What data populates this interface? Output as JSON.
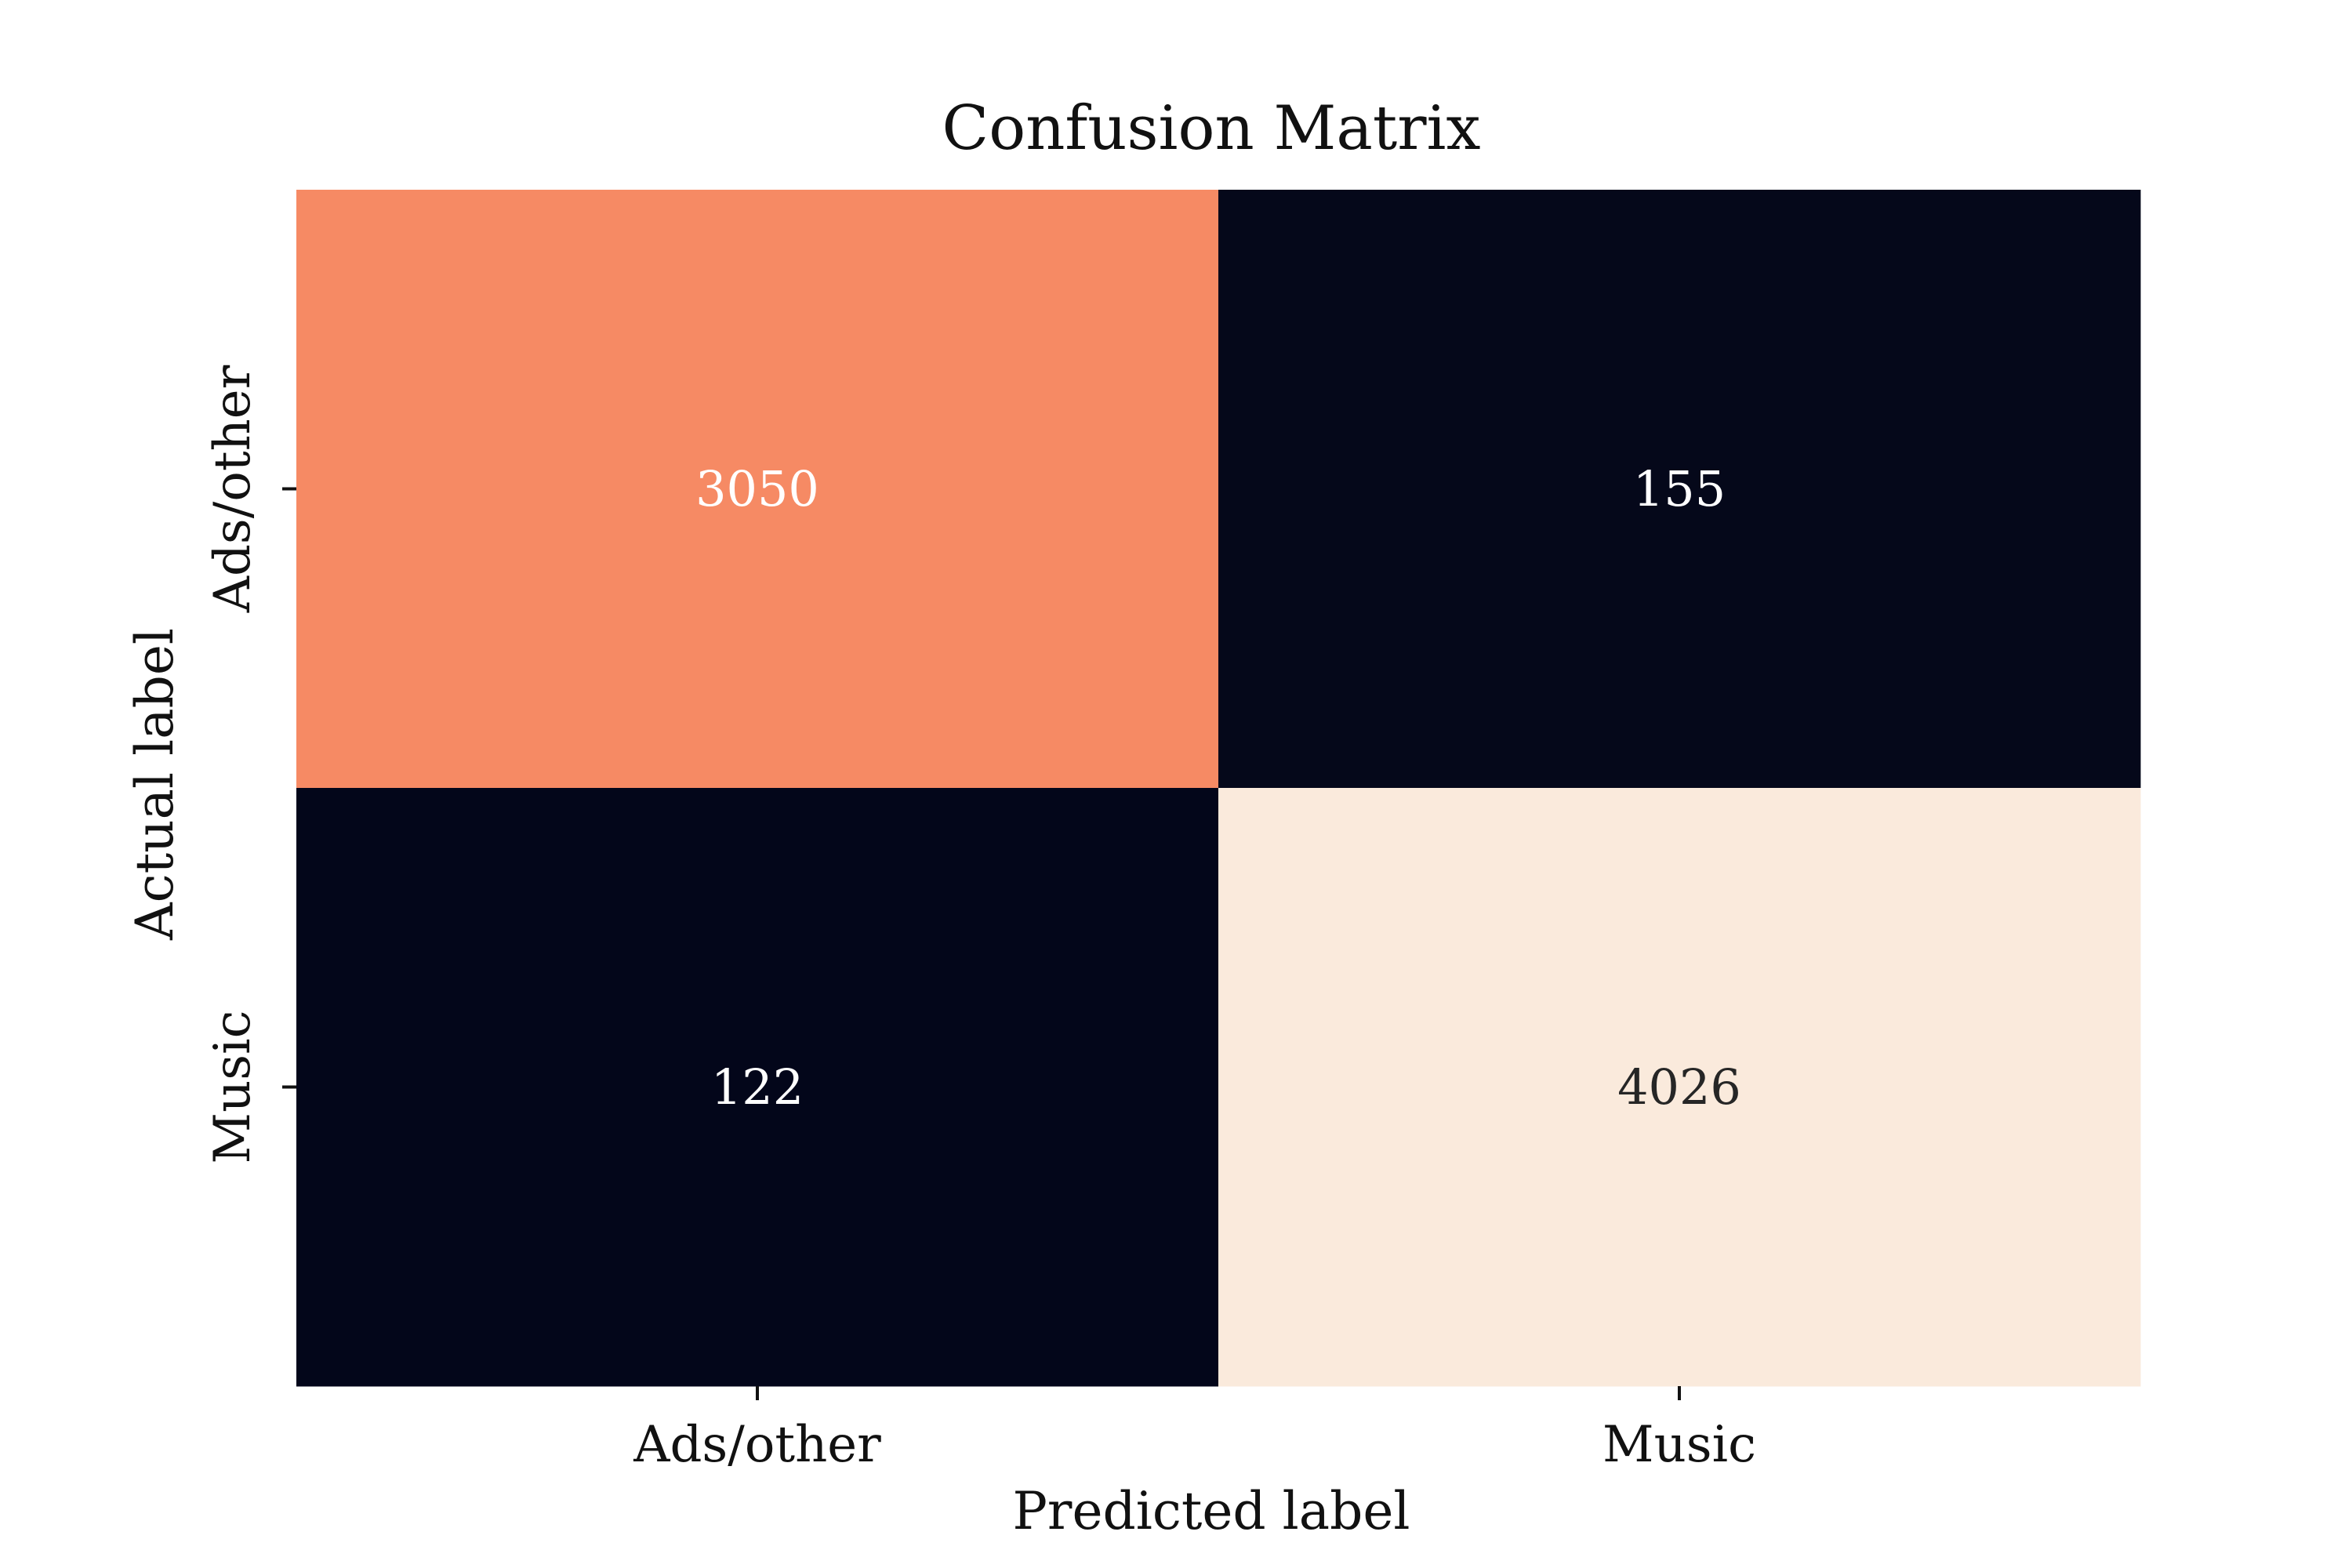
{
  "chart_data": {
    "type": "heatmap",
    "title": "Confusion Matrix",
    "xlabel": "Predicted label",
    "ylabel": "Actual label",
    "x_categories": [
      "Ads/other",
      "Music"
    ],
    "y_categories": [
      "Ads/other",
      "Music"
    ],
    "values": [
      [
        3050,
        155
      ],
      [
        122,
        4026
      ]
    ],
    "colormap": "rocket",
    "colorbar": false,
    "grid": false,
    "cell_colors": [
      [
        "#f68a64",
        "#05081a"
      ],
      [
        "#03061a",
        "#faeadc"
      ]
    ],
    "annotation_colors": [
      [
        "#ffffff",
        "#ffffff"
      ],
      [
        "#ffffff",
        "#262626"
      ]
    ]
  }
}
